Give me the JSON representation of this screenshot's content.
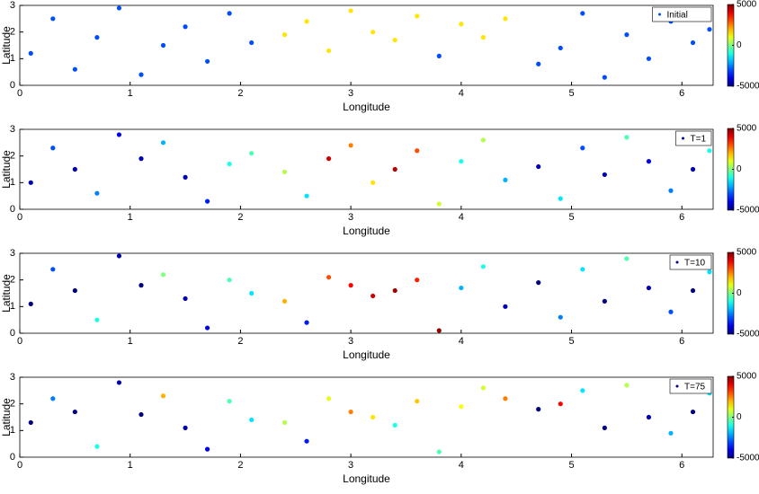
{
  "chart_data": [
    {
      "type": "scatter",
      "x_label": "Longitude",
      "y_label": "Latitude",
      "xlim": [
        0,
        6.2832
      ],
      "ylim": [
        0,
        3
      ],
      "xticks": [
        0,
        1,
        2,
        3,
        4,
        5,
        6
      ],
      "yticks": [
        0,
        1,
        2,
        3
      ],
      "colormap": "jet",
      "clim": [
        -5000,
        5000
      ],
      "cticks": [
        5000,
        0,
        -5000
      ],
      "legend": "upper right",
      "series": [
        {
          "name": "Initial",
          "x": [
            0.1,
            0.3,
            0.5,
            0.7,
            0.9,
            1.1,
            1.3,
            1.5,
            1.7,
            1.9,
            2.1,
            2.4,
            2.6,
            2.8,
            3.0,
            3.2,
            3.4,
            3.6,
            3.8,
            4.0,
            4.2,
            4.4,
            4.7,
            4.9,
            5.1,
            5.3,
            5.5,
            5.7,
            5.9,
            6.1,
            6.25
          ],
          "y": [
            1.2,
            2.5,
            0.6,
            1.8,
            2.9,
            0.4,
            1.5,
            2.2,
            0.9,
            2.7,
            1.6,
            1.9,
            2.4,
            1.3,
            2.8,
            2.0,
            1.7,
            2.6,
            1.1,
            2.3,
            1.8,
            2.5,
            0.8,
            1.4,
            2.7,
            0.3,
            1.9,
            1.0,
            2.4,
            1.6,
            2.1
          ],
          "c": [
            -3000,
            -3000,
            -3000,
            -3000,
            -3000,
            -3000,
            -3000,
            -3000,
            -3000,
            -3000,
            -3000,
            1500,
            1500,
            1500,
            1500,
            1500,
            1500,
            1500,
            -3000,
            1500,
            1500,
            1500,
            -3000,
            -3000,
            -3000,
            -3000,
            -3000,
            -3000,
            -3000,
            -3000,
            -3000
          ]
        }
      ]
    },
    {
      "type": "scatter",
      "x_label": "Longitude",
      "y_label": "Latitude",
      "xlim": [
        0,
        6.2832
      ],
      "ylim": [
        0,
        3
      ],
      "xticks": [
        0,
        1,
        2,
        3,
        4,
        5,
        6
      ],
      "yticks": [
        0,
        1,
        2,
        3
      ],
      "colormap": "jet",
      "clim": [
        -5000,
        5000
      ],
      "cticks": [
        5000,
        0,
        -5000
      ],
      "legend": "upper right",
      "series": [
        {
          "name": "T=1",
          "x": [
            0.1,
            0.3,
            0.5,
            0.7,
            0.9,
            1.1,
            1.3,
            1.5,
            1.7,
            1.9,
            2.1,
            2.4,
            2.6,
            2.8,
            3.0,
            3.2,
            3.4,
            3.6,
            3.8,
            4.0,
            4.2,
            4.4,
            4.7,
            4.9,
            5.1,
            5.3,
            5.5,
            5.7,
            5.9,
            6.1,
            6.25
          ],
          "y": [
            1.0,
            2.3,
            1.5,
            0.6,
            2.8,
            1.9,
            2.5,
            1.2,
            0.3,
            1.7,
            2.1,
            1.4,
            0.5,
            1.9,
            2.4,
            1.0,
            1.5,
            2.2,
            0.2,
            1.8,
            2.6,
            1.1,
            1.6,
            0.4,
            2.3,
            1.3,
            2.7,
            1.8,
            0.7,
            1.5,
            2.2
          ],
          "c": [
            -4500,
            -3000,
            -4500,
            -2500,
            -4000,
            -4500,
            -2000,
            -4500,
            -3500,
            -1000,
            -500,
            500,
            -1500,
            4200,
            2500,
            1500,
            4500,
            3000,
            800,
            -1000,
            500,
            -2000,
            -4500,
            -1500,
            -3000,
            -4500,
            -500,
            -4000,
            -2500,
            -4500,
            -1000
          ]
        }
      ]
    },
    {
      "type": "scatter",
      "x_label": "Longitude",
      "y_label": "Latitude",
      "xlim": [
        0,
        6.2832
      ],
      "ylim": [
        0,
        3
      ],
      "xticks": [
        0,
        1,
        2,
        3,
        4,
        5,
        6
      ],
      "yticks": [
        0,
        1,
        2,
        3
      ],
      "colormap": "jet",
      "clim": [
        -5000,
        5000
      ],
      "cticks": [
        5000,
        0,
        -5000
      ],
      "legend": "upper right",
      "series": [
        {
          "name": "T=10",
          "x": [
            0.1,
            0.3,
            0.5,
            0.7,
            0.9,
            1.1,
            1.3,
            1.5,
            1.7,
            1.9,
            2.1,
            2.4,
            2.6,
            2.8,
            3.0,
            3.2,
            3.4,
            3.6,
            3.8,
            4.0,
            4.2,
            4.4,
            4.7,
            4.9,
            5.1,
            5.3,
            5.5,
            5.7,
            5.9,
            6.1,
            6.25
          ],
          "y": [
            1.1,
            2.4,
            1.6,
            0.5,
            2.9,
            1.8,
            2.2,
            1.3,
            0.2,
            2.0,
            1.5,
            1.2,
            0.4,
            2.1,
            1.8,
            1.4,
            1.6,
            2.0,
            0.1,
            1.7,
            2.5,
            1.0,
            1.9,
            0.6,
            2.4,
            1.2,
            2.8,
            1.7,
            0.8,
            1.6,
            2.3
          ],
          "c": [
            -5000,
            -3000,
            -5000,
            -1000,
            -4500,
            -5000,
            0,
            -4500,
            -4000,
            -500,
            -1500,
            2000,
            -3500,
            3000,
            3800,
            4200,
            4700,
            3500,
            4800,
            -2000,
            -1000,
            -4500,
            -5000,
            -2500,
            -1500,
            -5000,
            -500,
            -4500,
            -3000,
            -5000,
            -1500
          ]
        }
      ]
    },
    {
      "type": "scatter",
      "x_label": "Longitude",
      "y_label": "Latitude",
      "xlim": [
        0,
        6.2832
      ],
      "ylim": [
        0,
        3
      ],
      "xticks": [
        0,
        1,
        2,
        3,
        4,
        5,
        6
      ],
      "yticks": [
        0,
        1,
        2,
        3
      ],
      "colormap": "jet",
      "clim": [
        -5000,
        5000
      ],
      "cticks": [
        5000,
        0,
        -5000
      ],
      "legend": "upper right",
      "series": [
        {
          "name": "T=75",
          "x": [
            0.1,
            0.3,
            0.5,
            0.7,
            0.9,
            1.1,
            1.3,
            1.5,
            1.7,
            1.9,
            2.1,
            2.4,
            2.6,
            2.8,
            3.0,
            3.2,
            3.4,
            3.6,
            3.8,
            4.0,
            4.2,
            4.4,
            4.7,
            4.9,
            5.1,
            5.3,
            5.5,
            5.7,
            5.9,
            6.1,
            6.25
          ],
          "y": [
            1.3,
            2.2,
            1.7,
            0.4,
            2.8,
            1.6,
            2.3,
            1.1,
            0.3,
            2.1,
            1.4,
            1.3,
            0.6,
            2.2,
            1.7,
            1.5,
            1.2,
            2.1,
            0.2,
            1.9,
            2.6,
            2.2,
            1.8,
            2.0,
            2.5,
            1.1,
            2.7,
            1.5,
            0.9,
            1.7,
            2.4
          ],
          "c": [
            -5000,
            -2500,
            -5000,
            -1000,
            -4500,
            -5000,
            2000,
            -4500,
            -4000,
            -500,
            -1500,
            500,
            -3500,
            1000,
            2500,
            1500,
            -1000,
            1800,
            -500,
            1200,
            800,
            2500,
            -5000,
            3800,
            -1500,
            -5000,
            500,
            -4500,
            -2000,
            -5000,
            -1500
          ]
        }
      ]
    }
  ]
}
